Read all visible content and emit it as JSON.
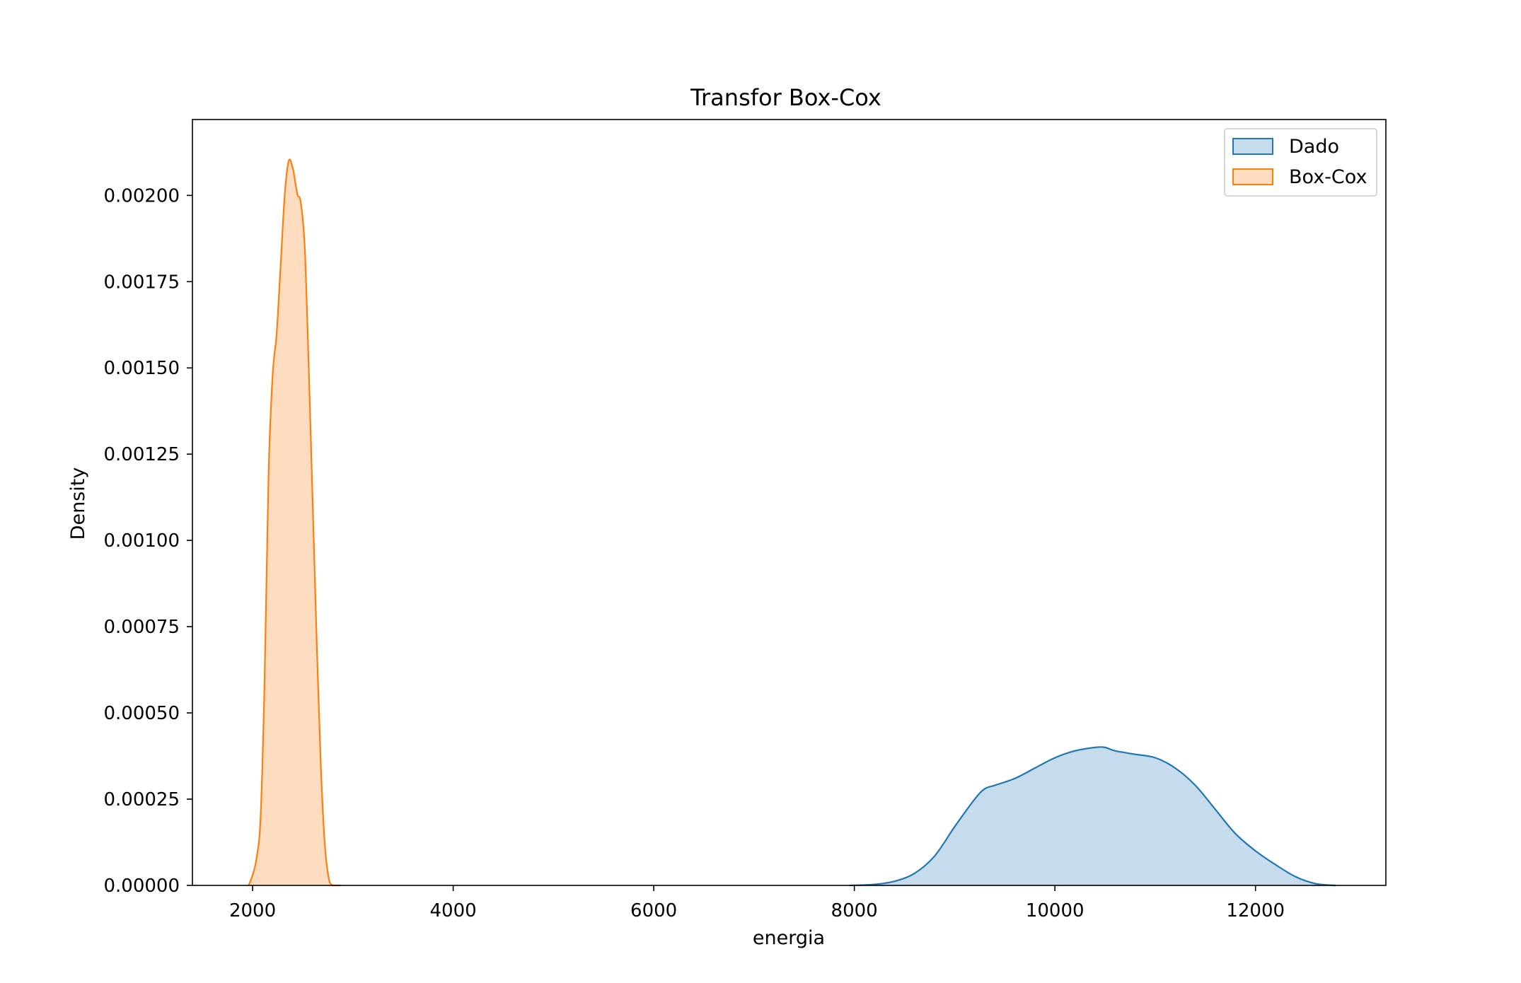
{
  "chart_data": {
    "type": "area",
    "title": "Transfor Box-Cox",
    "xlabel": "energia",
    "ylabel": "Density",
    "xlim": [
      1400,
      13300
    ],
    "ylim": [
      0,
      0.00222
    ],
    "xticks": [
      2000,
      4000,
      6000,
      8000,
      10000,
      12000
    ],
    "xtick_labels": [
      "2000",
      "4000",
      "6000",
      "8000",
      "10000",
      "12000"
    ],
    "yticks": [
      0,
      0.00025,
      0.0005,
      0.00075,
      0.001,
      0.00125,
      0.0015,
      0.00175,
      0.002
    ],
    "ytick_labels": [
      "0.00000",
      "0.00025",
      "0.00050",
      "0.00075",
      "0.00100",
      "0.00125",
      "0.00150",
      "0.00175",
      "0.00200"
    ],
    "grid": false,
    "legend_position": "top-right",
    "series": [
      {
        "name": "Dado",
        "line_color": "#1f77b4",
        "fill_color": "#c6dcec",
        "x": [
          7950,
          8200,
          8400,
          8600,
          8800,
          9000,
          9200,
          9300,
          9400,
          9600,
          9800,
          10000,
          10200,
          10400,
          10500,
          10600,
          10800,
          11000,
          11200,
          11400,
          11600,
          11800,
          12000,
          12200,
          12400,
          12600,
          12800
        ],
        "y": [
          0,
          3e-06,
          1.2e-05,
          3.5e-05,
          8.5e-05,
          0.00017,
          0.00025,
          0.00028,
          0.00029,
          0.00031,
          0.00034,
          0.00037,
          0.00039,
          0.0004,
          0.0004,
          0.00039,
          0.00038,
          0.00037,
          0.00034,
          0.00029,
          0.00022,
          0.00015,
          0.0001,
          6e-05,
          2.5e-05,
          5e-06,
          0
        ]
      },
      {
        "name": "Box-Cox",
        "line_color": "#ff7f0e",
        "fill_color": "#fedcbf",
        "x": [
          1960,
          2000,
          2040,
          2080,
          2120,
          2160,
          2200,
          2240,
          2280,
          2320,
          2360,
          2400,
          2430,
          2450,
          2480,
          2520,
          2560,
          2600,
          2640,
          2680,
          2720,
          2760,
          2800,
          2840,
          2880
        ],
        "y": [
          0,
          3e-05,
          8e-05,
          0.0002,
          0.0006,
          0.0012,
          0.00148,
          0.0016,
          0.0018,
          0.002,
          0.0021,
          0.00208,
          0.00203,
          0.002,
          0.00198,
          0.00185,
          0.0015,
          0.0011,
          0.0007,
          0.00035,
          0.00012,
          2e-05,
          0,
          0,
          0
        ]
      }
    ]
  }
}
